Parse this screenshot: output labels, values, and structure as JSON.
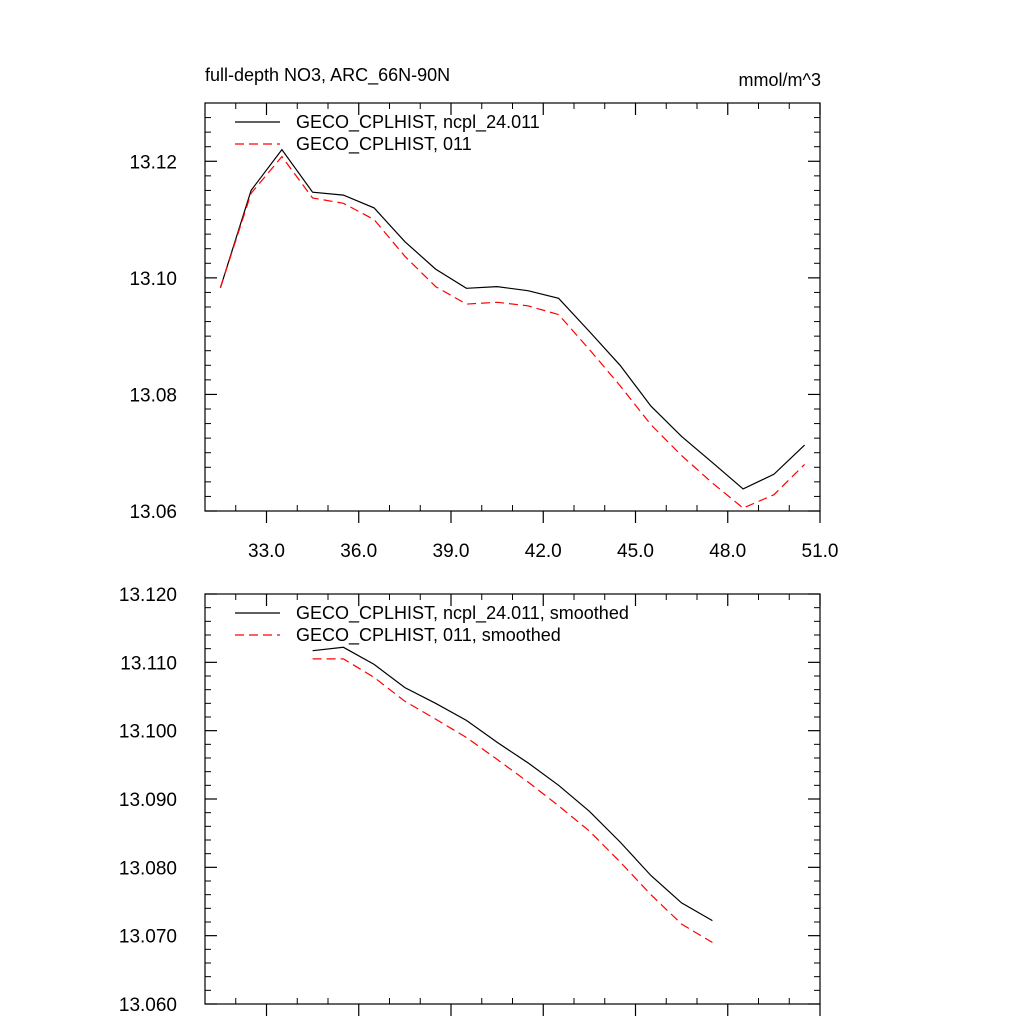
{
  "colors": {
    "series_1": "#000000",
    "series_2": "#ff0000",
    "axis": "#000000",
    "background": "#ffffff"
  },
  "chart_data": [
    {
      "type": "line",
      "title": "full-depth NO3, ARC_66N-90N",
      "units": "mmol/m^3",
      "xlabel": "",
      "ylabel": "",
      "xlim": [
        31.0,
        51.0
      ],
      "ylim": [
        13.06,
        13.13
      ],
      "xticks": [
        33.0,
        36.0,
        39.0,
        42.0,
        45.0,
        48.0,
        51.0
      ],
      "xtick_labels": [
        "33.0",
        "36.0",
        "39.0",
        "42.0",
        "45.0",
        "48.0",
        "51.0"
      ],
      "yticks": [
        13.06,
        13.08,
        13.1,
        13.12
      ],
      "ytick_labels": [
        "13.06",
        "13.08",
        "13.10",
        "13.12"
      ],
      "legend_position": "top-left",
      "series": [
        {
          "name": "GECO_CPLHIST, ncpl_24.011",
          "style": "solid",
          "x": [
            31.5,
            32.5,
            33.5,
            34.5,
            35.5,
            36.5,
            37.5,
            38.5,
            39.5,
            40.5,
            41.5,
            42.5,
            43.5,
            44.5,
            45.5,
            46.5,
            47.5,
            48.5,
            49.5,
            50.5
          ],
          "y": [
            13.0983,
            13.115,
            13.122,
            13.1147,
            13.1142,
            13.112,
            13.1062,
            13.1015,
            13.0982,
            13.0985,
            13.0978,
            13.0965,
            13.0908,
            13.085,
            13.078,
            13.0728,
            13.0683,
            13.0638,
            13.0663,
            13.0713
          ]
        },
        {
          "name": "GECO_CPLHIST, 011",
          "style": "dashed",
          "x": [
            31.5,
            32.5,
            33.5,
            34.5,
            35.5,
            36.5,
            37.5,
            38.5,
            39.5,
            40.5,
            41.5,
            42.5,
            43.5,
            44.5,
            45.5,
            46.5,
            47.5,
            48.5,
            49.5,
            50.5
          ],
          "y": [
            13.0983,
            13.1145,
            13.1208,
            13.1137,
            13.1128,
            13.11,
            13.1037,
            13.0985,
            13.0955,
            13.0958,
            13.0952,
            13.0937,
            13.0877,
            13.0815,
            13.0748,
            13.0695,
            13.0648,
            13.0605,
            13.0628,
            13.068
          ]
        }
      ]
    },
    {
      "type": "line",
      "title": "",
      "xlabel": "",
      "ylabel": "",
      "xlim": [
        31.0,
        51.0
      ],
      "ylim": [
        13.06,
        13.12
      ],
      "xticks": [
        33.0,
        36.0,
        39.0,
        42.0,
        45.0,
        48.0,
        51.0
      ],
      "xtick_labels": [],
      "yticks": [
        13.06,
        13.07,
        13.08,
        13.09,
        13.1,
        13.11,
        13.12
      ],
      "ytick_labels": [
        "13.060",
        "13.070",
        "13.080",
        "13.090",
        "13.100",
        "13.110",
        "13.120"
      ],
      "legend_position": "top-left",
      "series": [
        {
          "name": "GECO_CPLHIST, ncpl_24.011, smoothed",
          "style": "solid",
          "x": [
            34.5,
            35.5,
            36.5,
            37.5,
            38.5,
            39.5,
            40.5,
            41.5,
            42.5,
            43.5,
            44.5,
            45.5,
            46.5,
            47.5
          ],
          "y": [
            13.1117,
            13.1122,
            13.1097,
            13.1063,
            13.104,
            13.1015,
            13.0983,
            13.0953,
            13.092,
            13.0882,
            13.0837,
            13.0788,
            13.0748,
            13.0722
          ]
        },
        {
          "name": "GECO_CPLHIST, 011, smoothed",
          "style": "dashed",
          "x": [
            34.5,
            35.5,
            36.5,
            37.5,
            38.5,
            39.5,
            40.5,
            41.5,
            42.5,
            43.5,
            44.5,
            45.5,
            46.5,
            47.5
          ],
          "y": [
            13.1105,
            13.1105,
            13.1078,
            13.1043,
            13.1017,
            13.099,
            13.0958,
            13.0925,
            13.089,
            13.0853,
            13.0808,
            13.076,
            13.0717,
            13.069
          ]
        }
      ]
    }
  ]
}
